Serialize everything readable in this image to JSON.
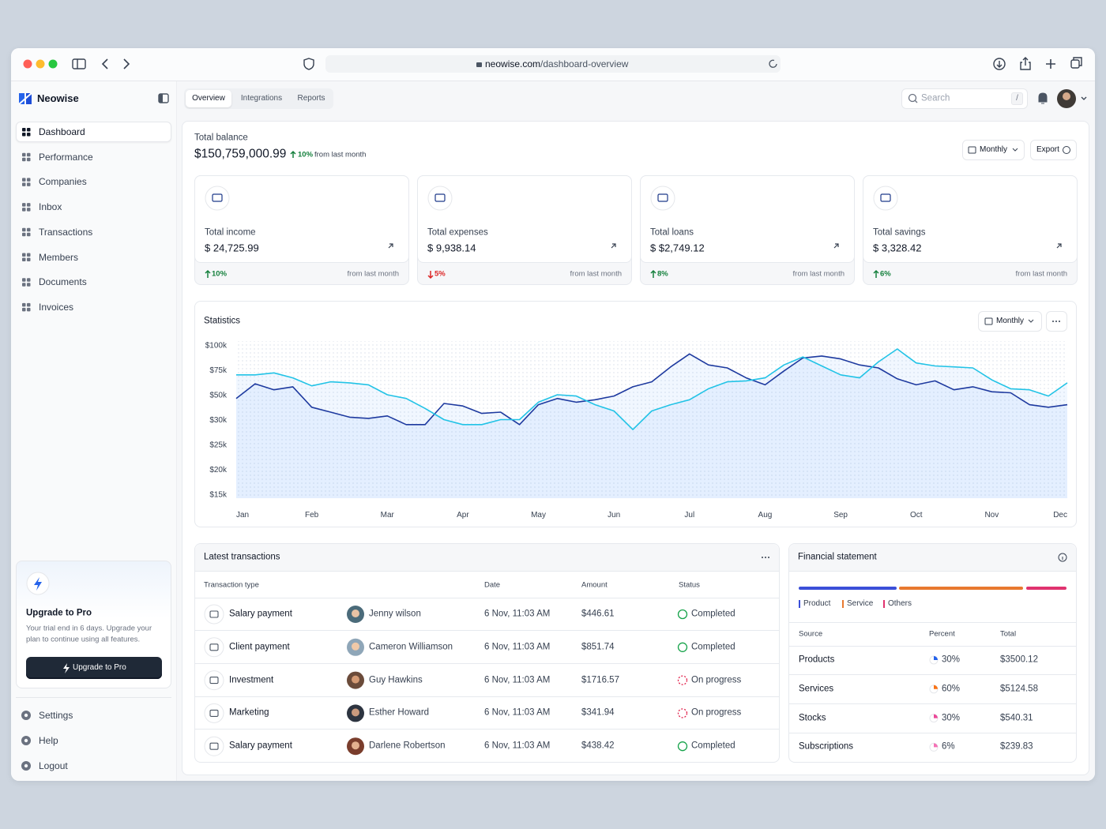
{
  "browser": {
    "url_host": "neowise.com",
    "url_path": "/dashboard-overview"
  },
  "sidebar": {
    "brand": "Neowise",
    "nav": [
      "Dashboard",
      "Performance",
      "Companies",
      "Inbox",
      "Transactions",
      "Members",
      "Documents",
      "Invoices"
    ],
    "upgrade": {
      "title": "Upgrade to Pro",
      "text_lines": [
        "Your trial end in 6 days. Upgrade your",
        "plan to continue using all features."
      ],
      "button": "Upgrade to Pro"
    },
    "footer_nav": [
      "Settings",
      "Help",
      "Logout"
    ]
  },
  "topbar": {
    "tabs": [
      "Overview",
      "Integrations",
      "Reports"
    ],
    "search": "Search",
    "shortcut": "/"
  },
  "balance": {
    "label": "Total balance",
    "amount": "$150,759,000.99",
    "change": "10%",
    "note": "from last month",
    "period": "Monthly",
    "export": "Export"
  },
  "cards": [
    {
      "label": "Total income",
      "amount": "$ 24,725.99",
      "change": "10%",
      "direction": "up",
      "color": "#15803d",
      "note": "from last month"
    },
    {
      "label": "Total expenses",
      "amount": "$ 9,938.14",
      "change": "5%",
      "direction": "down",
      "color": "#dc2626",
      "note": "from last month"
    },
    {
      "label": "Total loans",
      "amount": "$ $2,749.12",
      "change": "8%",
      "direction": "up",
      "color": "#15803d",
      "note": "from last month"
    },
    {
      "label": "Total savings",
      "amount": "$ 3,328.42",
      "change": "6%",
      "direction": "up",
      "color": "#15803d",
      "note": "from last month"
    }
  ],
  "chart_data": {
    "type": "line",
    "title": "Statistics",
    "period": "Monthly",
    "categories": [
      "Jan",
      null,
      null,
      null,
      "Feb",
      null,
      null,
      null,
      "Mar",
      null,
      null,
      null,
      "Apr",
      null,
      null,
      null,
      "May",
      null,
      null,
      null,
      "Jun",
      null,
      null,
      null,
      "Jul",
      null,
      null,
      null,
      "Aug",
      null,
      null,
      null,
      "Sep",
      null,
      null,
      null,
      "Oct",
      null,
      null,
      null,
      "Nov",
      null,
      null,
      null,
      "Dec"
    ],
    "series": [
      {
        "color": "#1e3a9f",
        "values": [
          47000,
          61000,
          55000,
          58000,
          40000,
          36000,
          32000,
          31000,
          33000,
          29000,
          29000,
          43000,
          41000,
          35000,
          36000,
          29000,
          42000,
          47000,
          44000,
          46000,
          49000,
          58000,
          63000,
          78000,
          91000,
          80000,
          77000,
          67000,
          60000,
          74000,
          87000,
          89000,
          86000,
          80000,
          77000,
          66000,
          60000,
          64000,
          55000,
          58000,
          53000,
          52000,
          42000,
          40000,
          42000
        ]
      },
      {
        "color": "#22c3e6",
        "values": [
          70000,
          70000,
          72000,
          67000,
          59000,
          63000,
          62000,
          60000,
          50000,
          47000,
          39000,
          30000,
          29000,
          29000,
          30000,
          30000,
          44000,
          50000,
          49000,
          42000,
          37000,
          28000,
          37000,
          42000,
          46000,
          56000,
          63000,
          64000,
          67000,
          80000,
          88000,
          79000,
          70000,
          67000,
          83000,
          96000,
          82000,
          79000,
          78000,
          77000,
          65000,
          56000,
          55000,
          49000,
          62000
        ]
      }
    ],
    "ylim": [
      15000,
      100000
    ],
    "yticks": [
      {
        "value": 100000,
        "label": "$100k"
      },
      {
        "value": 75000,
        "label": "$75k"
      },
      {
        "value": 50000,
        "label": "$50k"
      },
      {
        "value": 30000,
        "label": "$30k"
      },
      {
        "value": 25000,
        "label": "$25k"
      },
      {
        "value": 20000,
        "label": "$20k"
      },
      {
        "value": 15000,
        "label": "$15k"
      }
    ],
    "grid": false
  },
  "transactions": {
    "title": "Latest transactions",
    "columns": [
      "Transaction type",
      "Date",
      "Amount",
      "Status"
    ],
    "rows": [
      {
        "type": "Salary payment",
        "name": "Jenny wilson",
        "date": "6 Nov, 11:03 AM",
        "amount": "$446.61",
        "status": "Completed",
        "status_color": "#16a34a"
      },
      {
        "type": "Client payment",
        "name": "Cameron Williamson",
        "date": "6 Nov, 11:03 AM",
        "amount": "$851.74",
        "status": "Completed",
        "status_color": "#16a34a"
      },
      {
        "type": "Investment",
        "name": "Guy Hawkins",
        "date": "6 Nov, 11:03 AM",
        "amount": "$1716.57",
        "status": "On progress",
        "status_color": "#e11d48"
      },
      {
        "type": "Marketing",
        "name": "Esther Howard",
        "date": "6 Nov, 11:03 AM",
        "amount": "$341.94",
        "status": "On progress",
        "status_color": "#e11d48"
      },
      {
        "type": "Salary payment",
        "name": "Darlene Robertson",
        "date": "6 Nov, 11:03 AM",
        "amount": "$438.42",
        "status": "Completed",
        "status_color": "#16a34a"
      }
    ]
  },
  "financial": {
    "title": "Financial statement",
    "legend": [
      {
        "name": "Product",
        "color": "#3b4fd8"
      },
      {
        "name": "Service",
        "color": "#e8792f"
      },
      {
        "name": "Others",
        "color": "#e0336f"
      }
    ],
    "columns": [
      "Source",
      "Percent",
      "Total"
    ],
    "rows": [
      {
        "source": "Products",
        "percent": "30%",
        "total": "$3500.12",
        "color": "#2563eb"
      },
      {
        "source": "Services",
        "percent": "60%",
        "total": "$5124.58",
        "color": "#f97316"
      },
      {
        "source": "Stocks",
        "percent": "30%",
        "total": "$540.31",
        "color": "#ec4899"
      },
      {
        "source": "Subscriptions",
        "percent": "6%",
        "total": "$239.83",
        "color": "#f472b6"
      }
    ]
  }
}
